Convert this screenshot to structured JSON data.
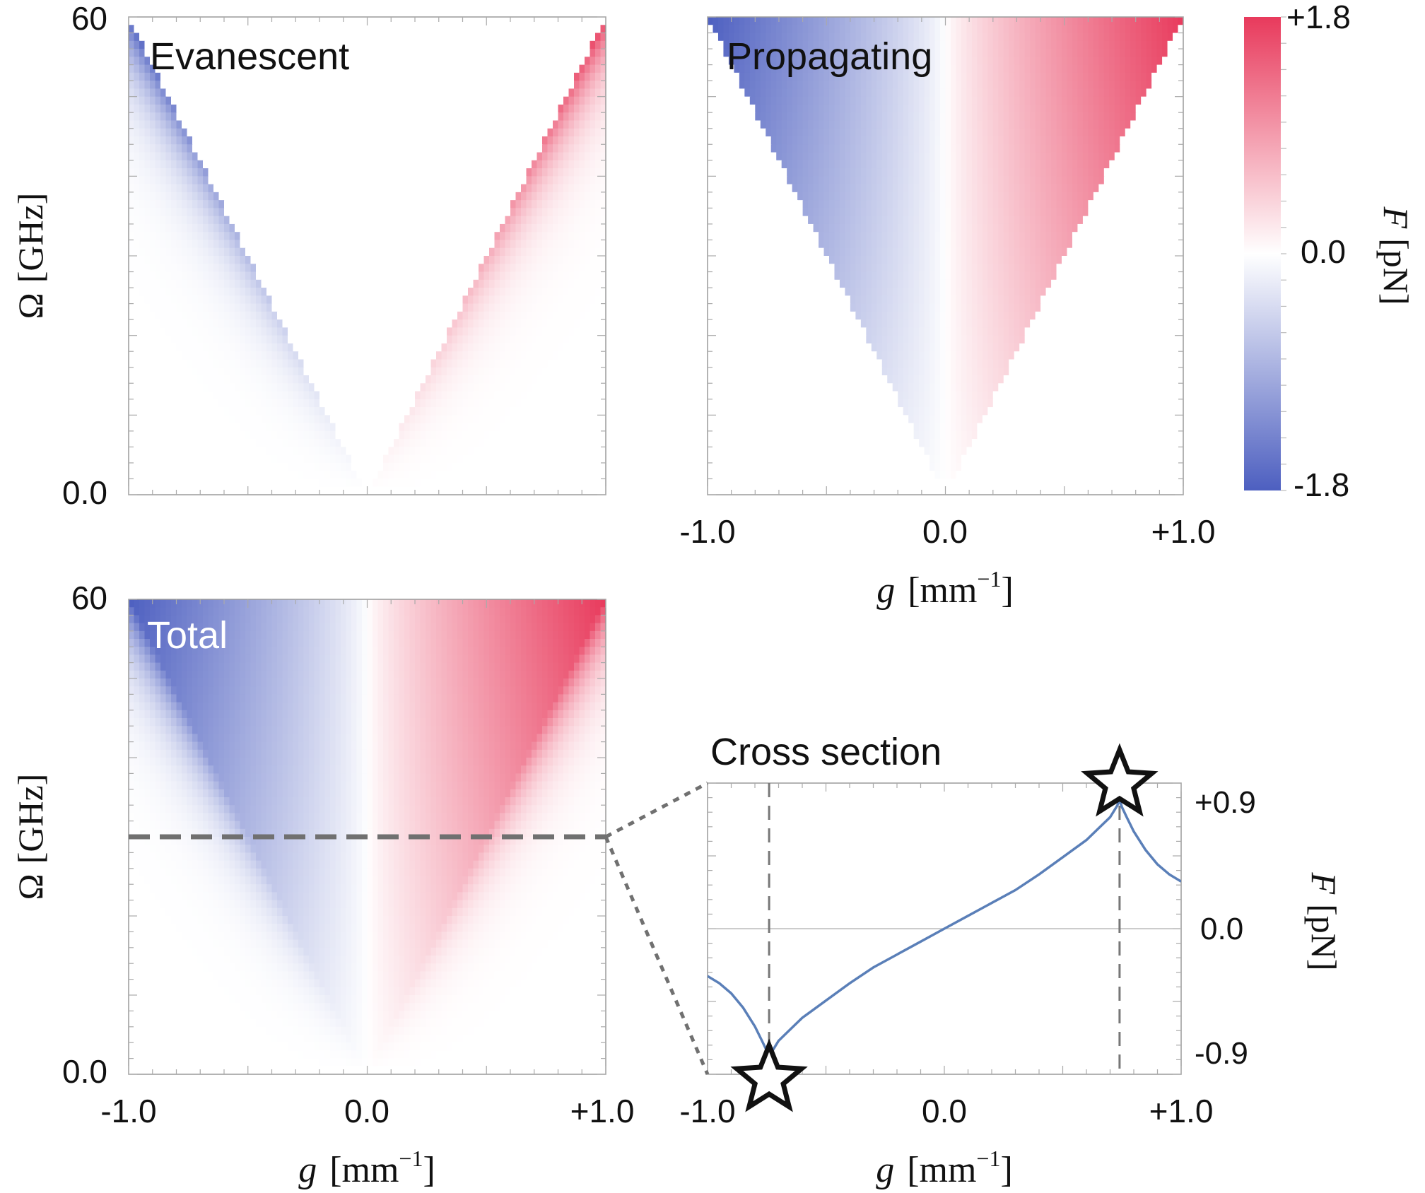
{
  "colors": {
    "negative": "#4d5fc0",
    "neutral": "#ffffff",
    "positive": "#e83a5c",
    "curve": "#5a7fb8",
    "guide": "#777777",
    "frame": "#999999",
    "cross_dash": "#707070"
  },
  "panels": {
    "evanescent_label": "Evanescent",
    "propagating_label": "Propagating",
    "total_label": "Total",
    "cross_label": "Cross section"
  },
  "colorbar": {
    "label_var": "F",
    "label_unit": "[pN]",
    "max_label": "+1.8",
    "mid_label": "0.0",
    "min_label": "-1.8"
  },
  "chart_data": [
    {
      "type": "heatmap",
      "title": "Evanescent",
      "xlim": [
        -1.0,
        1.0
      ],
      "ylim": [
        0.0,
        60
      ],
      "xlabel": "",
      "ylabel_var": "Ω",
      "ylabel_unit": "[GHz]",
      "y_ticks": [
        "0.0",
        "60"
      ],
      "zlim": [
        -1.8,
        1.8
      ],
      "region": "|g| > Ω / 60 (outside the light cone)",
      "notes": "Force antisymmetric in g: negative (blue) for g < 0, positive (red) for g > 0; strongest along the cone edges"
    },
    {
      "type": "heatmap",
      "title": "Propagating",
      "xlim": [
        -1.0,
        1.0
      ],
      "ylim": [
        0.0,
        60
      ],
      "x_ticks": [
        "-1.0",
        "0.0",
        "+1.0"
      ],
      "xlabel_var": "g",
      "xlabel_unit": "[mm",
      "xlabel_exp": "−1",
      "zlim": [
        -1.8,
        1.8
      ],
      "region": "|g| < Ω / 60 (inside the light cone)",
      "notes": "Force varies smoothly from -1.8 pN at g=-1.0 to +1.8 pN at g=+1.0 near the top"
    },
    {
      "type": "heatmap",
      "title": "Total",
      "xlim": [
        -1.0,
        1.0
      ],
      "ylim": [
        0.0,
        60
      ],
      "x_ticks": [
        "-1.0",
        "0.0",
        "+1.0"
      ],
      "y_ticks": [
        "0.0",
        "60"
      ],
      "xlabel_var": "g",
      "xlabel_unit": "[mm",
      "xlabel_exp": "−1",
      "ylabel_var": "Ω",
      "ylabel_unit": "[GHz]",
      "zlim": [
        -1.8,
        1.8
      ],
      "cross_section_omega": 30,
      "notes": "Sum of evanescent and propagating contributions; dashed line marks the cross section"
    },
    {
      "type": "line",
      "title": "Cross section",
      "xlim": [
        -1.0,
        1.0
      ],
      "ylim": [
        -0.9,
        0.9
      ],
      "x_ticks": [
        "-1.0",
        "0.0",
        "+1.0"
      ],
      "y_ticks": [
        "-0.9",
        "0.0",
        "+0.9"
      ],
      "xlabel_var": "g",
      "xlabel_unit": "[mm",
      "xlabel_exp": "−1",
      "ylabel_var": "F",
      "ylabel_unit": "[pN]",
      "extrema_x": [
        -0.74,
        0.74
      ],
      "series": [
        {
          "x": [
            -1.0,
            -0.95,
            -0.9,
            -0.85,
            -0.8,
            -0.77,
            -0.75,
            -0.74,
            -0.73,
            -0.7,
            -0.65,
            -0.6,
            -0.5,
            -0.4,
            -0.3,
            -0.2,
            -0.1,
            0.0,
            0.1,
            0.2,
            0.3,
            0.4,
            0.5,
            0.6,
            0.65,
            0.7,
            0.73,
            0.74,
            0.75,
            0.77,
            0.8,
            0.85,
            0.9,
            0.95,
            1.0
          ],
          "y": [
            -0.33,
            -0.38,
            -0.45,
            -0.55,
            -0.68,
            -0.78,
            -0.85,
            -0.9,
            -0.86,
            -0.78,
            -0.7,
            -0.62,
            -0.5,
            -0.38,
            -0.27,
            -0.18,
            -0.09,
            0.0,
            0.09,
            0.18,
            0.27,
            0.38,
            0.5,
            0.62,
            0.7,
            0.78,
            0.86,
            0.9,
            0.85,
            0.78,
            0.68,
            0.55,
            0.45,
            0.38,
            0.33
          ]
        }
      ]
    }
  ]
}
